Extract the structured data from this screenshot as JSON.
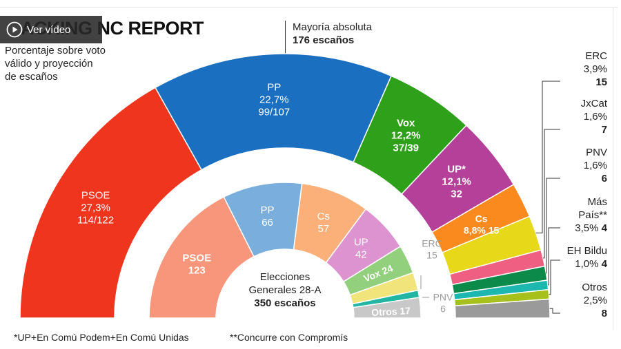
{
  "header": {
    "title": "ACKING NC REPORT",
    "subtitle_lines": [
      "Porcentaje sobre voto",
      "válido y proyección",
      "de escaños"
    ],
    "video_button": "Ver vídeo",
    "mayoria_label": "Mayoría absoluta",
    "mayoria_value": "176 escaños"
  },
  "center": {
    "line1": "Elecciones",
    "line2": "Generales 28-A",
    "line3": "350 escaños"
  },
  "footnotes": {
    "note1": "*UP+En Comú Podem+En Comú Unidas",
    "note2": "**Concurre con Compromís"
  },
  "colors": {
    "psoe": "#f0351f",
    "pp": "#1a6fc0",
    "vox": "#2ea01a",
    "up": "#b4409a",
    "cs": "#fa8a1e",
    "erc": "#e8d81a",
    "jxcat": "#ee5f82",
    "pnv": "#0b8a4a",
    "mas_pais": "#1cb8b0",
    "eh_bildu": "#a8c01c",
    "otros": "#9a9a9a",
    "psoe_2019": "#f7967a",
    "pp_2019": "#7aaedc",
    "cs_2019": "#fab078",
    "up_2019": "#dd93d0",
    "vox_2019": "#92d07e",
    "erc_2019": "#f0e47a",
    "pnv_2019": "#22b6a2",
    "otros_2019": "#c8c8c8"
  },
  "right_labels": [
    {
      "name": "ERC",
      "pct": "3,9%",
      "seats": "15"
    },
    {
      "name": "JxCat",
      "pct": "1,6%",
      "seats": "7"
    },
    {
      "name": "PNV",
      "pct": "1,6%",
      "seats": "6"
    },
    {
      "name": "Más País**",
      "pct": "3,5%",
      "seats": "4"
    },
    {
      "name": "EH Bildu",
      "pct": "1,0%",
      "seats": "4"
    },
    {
      "name": "Otros",
      "pct": "2,5%",
      "seats": "8"
    }
  ],
  "chart_data": [
    {
      "type": "pie",
      "title": "Porcentaje sobre voto válido y proyección de escaños",
      "unit": "escaños",
      "total_seats": 350,
      "majority": 176,
      "series": [
        {
          "name": "PSOE",
          "pct": "27,3%",
          "seats_label": "114/122",
          "seats": 118
        },
        {
          "name": "PP",
          "pct": "22,7%",
          "seats_label": "99/107",
          "seats": 103
        },
        {
          "name": "Vox",
          "pct": "12,2%",
          "seats_label": "37/39",
          "seats": 38
        },
        {
          "name": "UP*",
          "pct": "12,1%",
          "seats_label": "32",
          "seats": 32
        },
        {
          "name": "Cs",
          "pct": "8,8%",
          "seats_label": "15",
          "seats": 15
        },
        {
          "name": "ERC",
          "pct": "3,9%",
          "seats_label": "15",
          "seats": 15
        },
        {
          "name": "JxCat",
          "pct": "1,6%",
          "seats_label": "7",
          "seats": 7
        },
        {
          "name": "PNV",
          "pct": "1,6%",
          "seats_label": "6",
          "seats": 6
        },
        {
          "name": "Más País**",
          "pct": "3,5%",
          "seats_label": "4",
          "seats": 4
        },
        {
          "name": "EH Bildu",
          "pct": "1,0%",
          "seats_label": "4",
          "seats": 4
        },
        {
          "name": "Otros",
          "pct": "2,5%",
          "seats_label": "8",
          "seats": 8
        }
      ]
    },
    {
      "type": "pie",
      "title": "Elecciones Generales 28-A",
      "unit": "escaños",
      "total_seats": 350,
      "series": [
        {
          "name": "PSOE",
          "seats": 123
        },
        {
          "name": "PP",
          "seats": 66
        },
        {
          "name": "Cs",
          "seats": 57
        },
        {
          "name": "UP",
          "seats": 42
        },
        {
          "name": "Vox",
          "seats": 24
        },
        {
          "name": "ERC",
          "seats": 15
        },
        {
          "name": "PNV",
          "seats": 6
        },
        {
          "name": "Otros",
          "seats": 17
        }
      ]
    }
  ]
}
